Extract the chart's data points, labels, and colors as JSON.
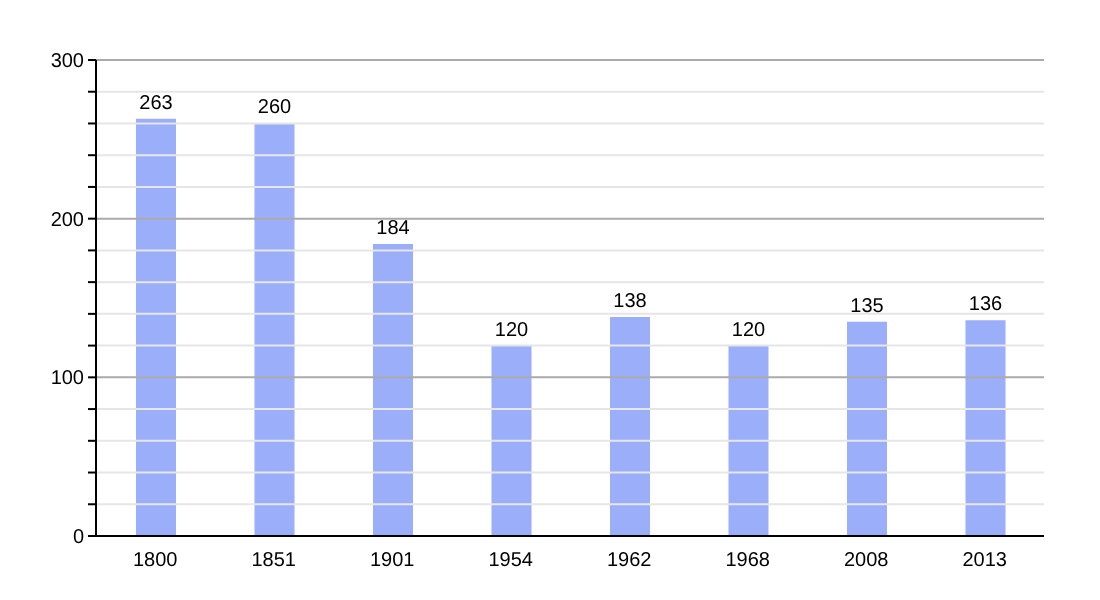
{
  "chart_data": {
    "type": "bar",
    "categories": [
      "1800",
      "1851",
      "1901",
      "1954",
      "1962",
      "1968",
      "2008",
      "2013"
    ],
    "values": [
      263,
      260,
      184,
      120,
      138,
      120,
      135,
      136
    ],
    "color": "#9aaefa",
    "data_labels": true,
    "grid": "y",
    "ylim": [
      0,
      300
    ],
    "yticks": [
      0,
      {
        "value": 20,
        "label": null
      },
      {
        "value": 40,
        "label": null
      },
      {
        "value": 60,
        "label": null
      },
      {
        "value": 80,
        "label": null
      },
      100,
      {
        "value": 120,
        "label": null
      },
      {
        "value": 140,
        "label": null
      },
      {
        "value": 160,
        "label": null
      },
      {
        "value": 180,
        "label": null
      },
      200,
      {
        "value": 220,
        "label": null
      },
      {
        "value": 240,
        "label": null
      },
      {
        "value": 260,
        "label": null
      },
      {
        "value": 280,
        "label": null
      },
      300
    ]
  }
}
